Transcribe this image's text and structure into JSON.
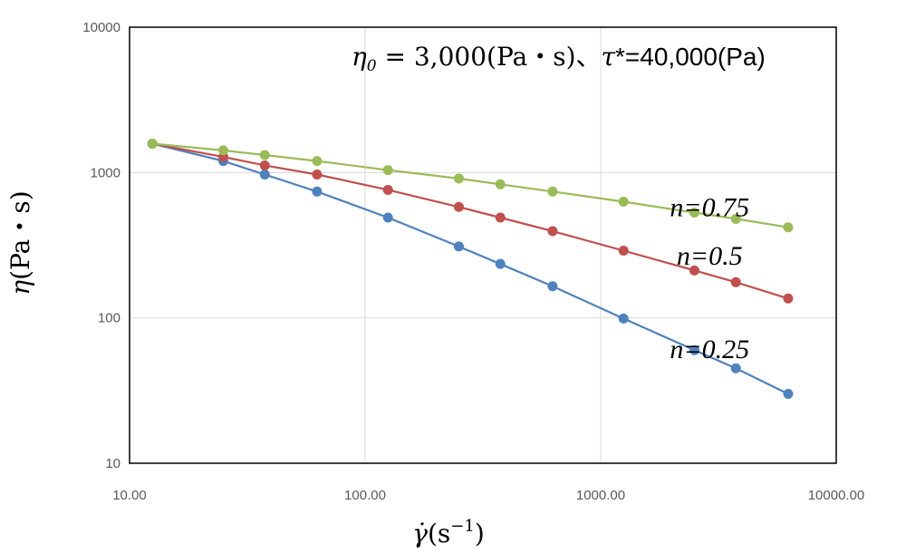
{
  "chart_data": {
    "type": "line",
    "title": "",
    "annotation": {
      "eta0_symbol": "η",
      "eta0_subscript": "0",
      "eta0_value": " = 3,000(Pa・s)、",
      "tau_symbol": "τ",
      "tau_value": "*=40,000(Pa)"
    },
    "xlabel": {
      "symbol": "γ̇",
      "text": "(s",
      "exponent": "−1",
      "close": ")"
    },
    "ylabel": {
      "symbol": "η",
      "text": "(Pa・s)"
    },
    "x_scale": "log",
    "y_scale": "log",
    "xlim": [
      10,
      10000
    ],
    "ylim": [
      10,
      10000
    ],
    "x_ticks": [
      "10.00",
      "100.00",
      "1000.00",
      "10000.00"
    ],
    "y_ticks": [
      "10",
      "100",
      "1000",
      "10000"
    ],
    "grid": true,
    "legend": "none",
    "x": [
      12.5,
      25,
      37.5,
      62.5,
      125,
      250,
      375,
      625,
      1250,
      2500,
      3750,
      6250
    ],
    "series": [
      {
        "label": "n=0.25",
        "color": "#4F81BD",
        "values": [
          1580,
          1200,
          970,
          740,
          490,
          310,
          235,
          165,
          99,
          60,
          45,
          30
        ]
      },
      {
        "label": "n=0.5",
        "color": "#C0504D",
        "values": [
          1580,
          1280,
          1120,
          970,
          760,
          580,
          490,
          395,
          290,
          212,
          176,
          136
        ]
      },
      {
        "label": "n=0.75",
        "color": "#9BBB59",
        "values": [
          1580,
          1420,
          1320,
          1200,
          1040,
          910,
          830,
          740,
          630,
          530,
          480,
          420
        ]
      }
    ]
  }
}
